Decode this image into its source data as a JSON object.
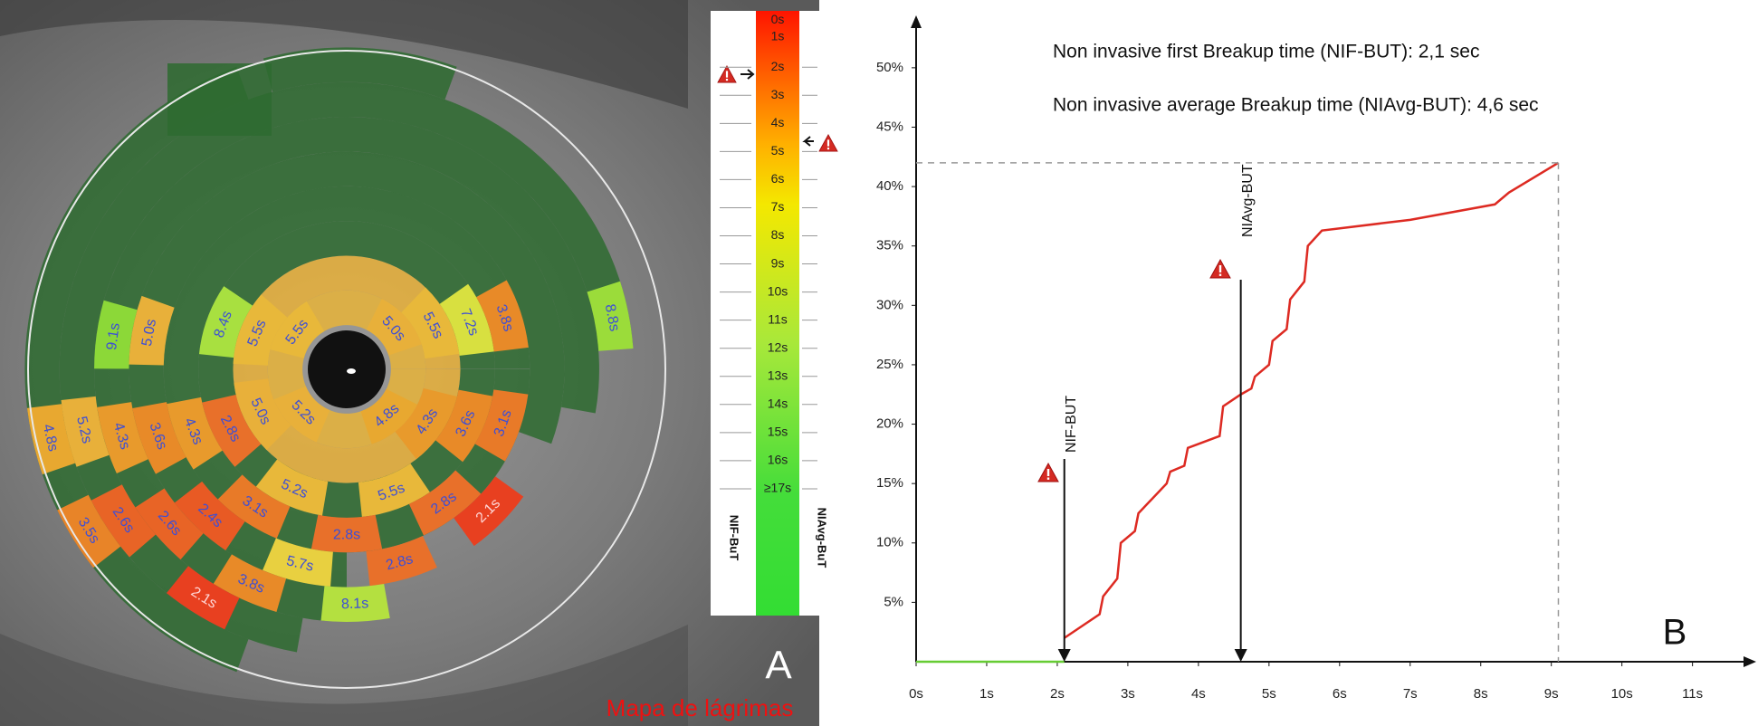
{
  "tear_map": {
    "sectors": [
      {
        "label": "8.4s",
        "color": "#a8e040"
      },
      {
        "label": "5.5s",
        "color": "#e8b83a"
      },
      {
        "label": "5.5s",
        "color": "#e8b83a"
      },
      {
        "label": "5.0s",
        "color": "#e8b03a"
      },
      {
        "label": "5.5s",
        "color": "#e8b83a"
      },
      {
        "label": "7.2s",
        "color": "#d8e040"
      },
      {
        "label": "3.8s",
        "color": "#e88a28"
      },
      {
        "label": "8.8s",
        "color": "#9bdc3a"
      },
      {
        "label": "9.1s",
        "color": "#8cd838"
      },
      {
        "label": "5.0s",
        "color": "#e8b03a"
      },
      {
        "label": "4.8s",
        "color": "#e8a830"
      },
      {
        "label": "5.2s",
        "color": "#e8b03a"
      },
      {
        "label": "4.3s",
        "color": "#e89a2c"
      },
      {
        "label": "3.6s",
        "color": "#e88a28"
      },
      {
        "label": "4.3s",
        "color": "#e89a2c"
      },
      {
        "label": "2.8s",
        "color": "#e8702a"
      },
      {
        "label": "5.0s",
        "color": "#e8b03a"
      },
      {
        "label": "5.2s",
        "color": "#e8b03a"
      },
      {
        "label": "4.8s",
        "color": "#e8a830"
      },
      {
        "label": "4.3s",
        "color": "#e89a2c"
      },
      {
        "label": "3.6s",
        "color": "#e88a28"
      },
      {
        "label": "3.1s",
        "color": "#e87a28"
      },
      {
        "label": "5.2s",
        "color": "#e8b83a"
      },
      {
        "label": "5.5s",
        "color": "#e8b83a"
      },
      {
        "label": "3.1s",
        "color": "#e87a28"
      },
      {
        "label": "2.8s",
        "color": "#e8702a"
      },
      {
        "label": "2.1s",
        "color": "#e84020"
      },
      {
        "label": "2.8s",
        "color": "#e8702a"
      },
      {
        "label": "2.4s",
        "color": "#e85a24"
      },
      {
        "label": "2.6s",
        "color": "#e86426"
      },
      {
        "label": "2.6s",
        "color": "#e86426"
      },
      {
        "label": "3.5s",
        "color": "#e88428"
      },
      {
        "label": "5.7s",
        "color": "#e8d040"
      },
      {
        "label": "2.8s",
        "color": "#e8702a"
      },
      {
        "label": "3.8s",
        "color": "#e88a28"
      },
      {
        "label": "8.1s",
        "color": "#b4e040"
      },
      {
        "label": "2.1s",
        "color": "#e84020"
      }
    ],
    "scale_labels": [
      "0s",
      "1s",
      "2s",
      "3s",
      "4s",
      "5s",
      "6s",
      "7s",
      "8s",
      "9s",
      "10s",
      "11s",
      "12s",
      "13s",
      "14s",
      "15s",
      "16s",
      "≥17s"
    ],
    "scale_left_label": "NIF-BuT",
    "scale_right_label": "NIAvg-BuT",
    "panel_label": "A",
    "caption": "Mapa de lágrimas"
  },
  "chart_data": {
    "type": "line",
    "annotations": [
      "Non invasive first Breakup time (NIF-BUT): 2,1 sec",
      "Non invasive average Breakup time (NIAvg-BUT): 4,6 sec"
    ],
    "series": [
      {
        "color": "#66cc33",
        "x": [
          0,
          2.1
        ],
        "values": [
          0,
          0
        ]
      },
      {
        "color": "#dd2a22",
        "x": [
          2.1,
          2.6,
          2.65,
          2.85,
          2.9,
          3.1,
          3.15,
          3.55,
          3.6,
          3.8,
          3.85,
          4.3,
          4.35,
          4.6,
          4.75,
          4.8,
          5.0,
          5.05,
          5.25,
          5.3,
          5.5,
          5.55,
          5.75,
          7.0,
          8.2,
          8.4,
          9.1
        ],
        "values": [
          2,
          4,
          5.5,
          7,
          10,
          11,
          12.5,
          15,
          16,
          16.5,
          18,
          19,
          21.5,
          22.5,
          23,
          24,
          25,
          27,
          28,
          30.5,
          32,
          35,
          36.3,
          37.2,
          38.5,
          39.5,
          42
        ]
      }
    ],
    "markers": [
      {
        "label": "NIF-BUT",
        "x": 2.1
      },
      {
        "label": "NIAvg-BUT",
        "x": 4.6
      }
    ],
    "reference_lines": true,
    "xlim": [
      0,
      11.8
    ],
    "ylim": [
      0,
      53.8
    ],
    "xticks": [
      {
        "value": 0,
        "label": "0s"
      },
      {
        "value": 1,
        "label": "1s"
      },
      {
        "value": 2,
        "label": "2s"
      },
      {
        "value": 3,
        "label": "3s"
      },
      {
        "value": 4,
        "label": "4s"
      },
      {
        "value": 5,
        "label": "5s"
      },
      {
        "value": 6,
        "label": "6s"
      },
      {
        "value": 7,
        "label": "7s"
      },
      {
        "value": 8,
        "label": "8s"
      },
      {
        "value": 9,
        "label": "9s"
      },
      {
        "value": 10,
        "label": "10s"
      },
      {
        "value": 11,
        "label": "11s"
      }
    ],
    "yticks": [
      {
        "value": 5,
        "label": "5%"
      },
      {
        "value": 10,
        "label": "10%"
      },
      {
        "value": 15,
        "label": "15%"
      },
      {
        "value": 20,
        "label": "20%"
      },
      {
        "value": 25,
        "label": "25%"
      },
      {
        "value": 30,
        "label": "30%"
      },
      {
        "value": 35,
        "label": "35%"
      },
      {
        "value": 40,
        "label": "40%"
      },
      {
        "value": 45,
        "label": "45%"
      },
      {
        "value": 50,
        "label": "50%"
      }
    ],
    "panel_label": "B"
  }
}
